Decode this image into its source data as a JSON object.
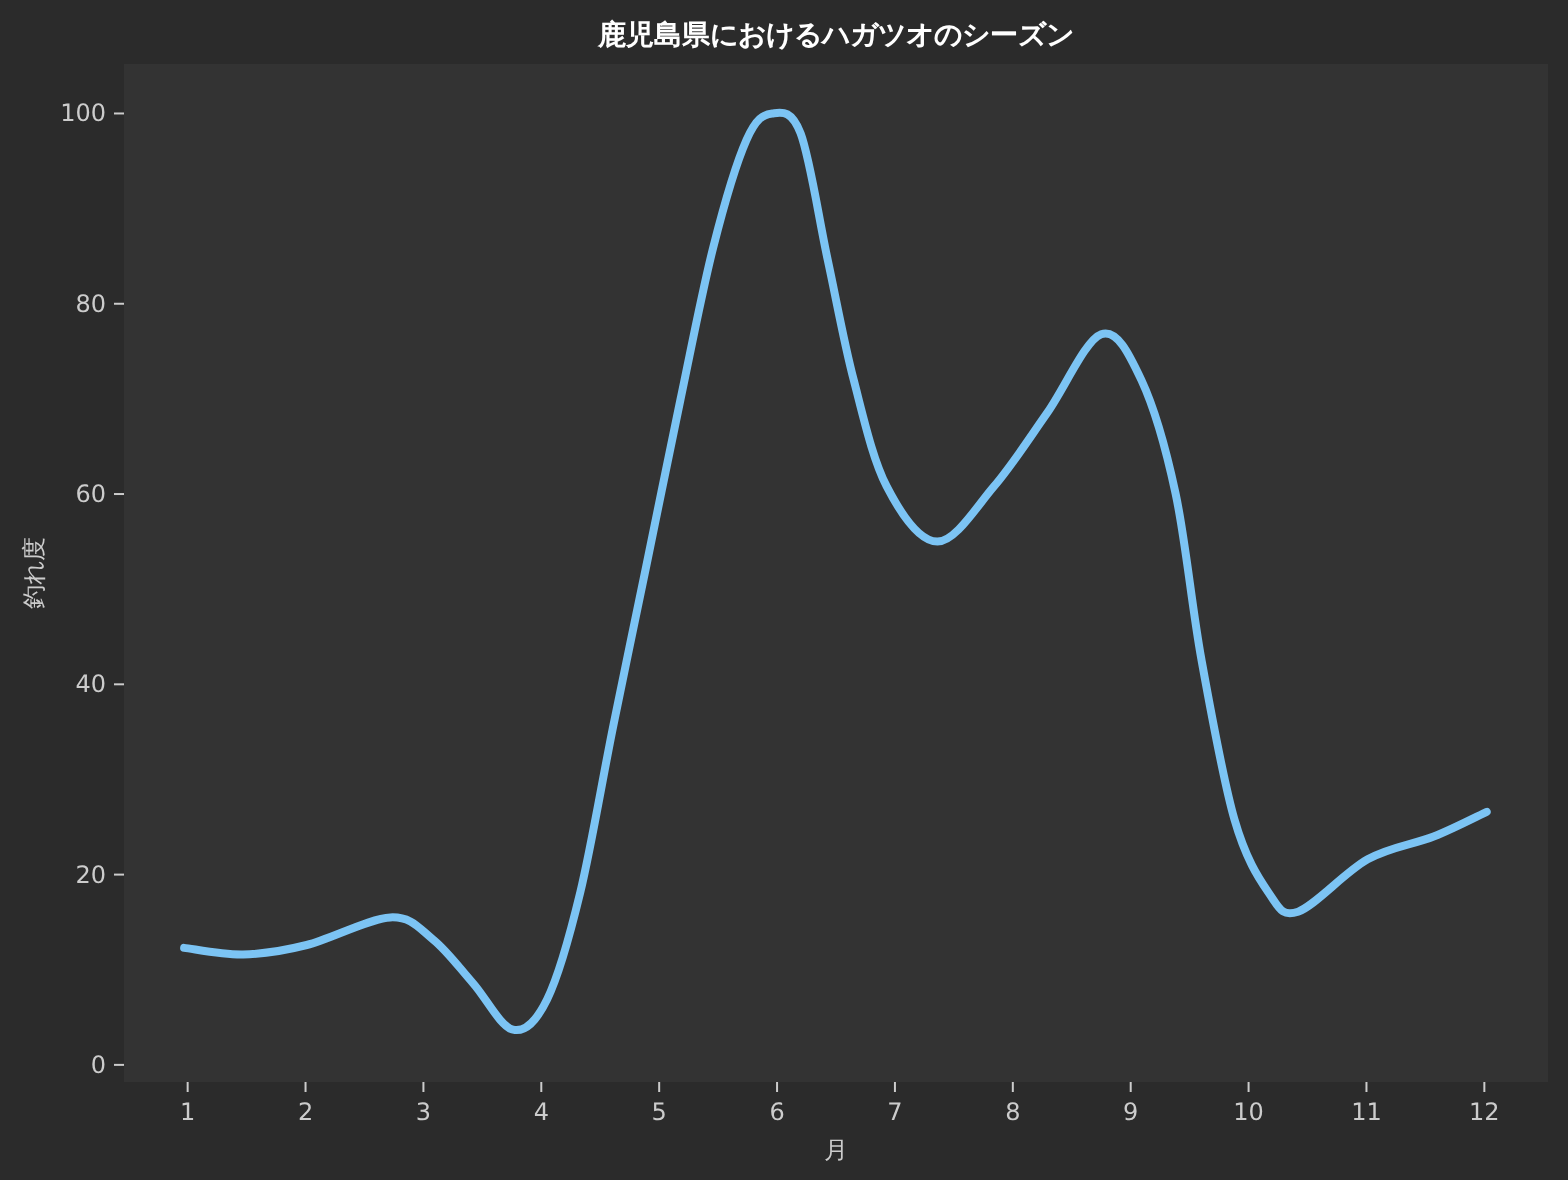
{
  "chart_data": {
    "type": "line",
    "title": "鹿児島県におけるハガツオのシーズン",
    "xlabel": "月",
    "ylabel": "釣れ度",
    "xlim": [
      0.46,
      12.54
    ],
    "ylim": [
      -1.8,
      105.2
    ],
    "xticks": [
      1,
      2,
      3,
      4,
      5,
      6,
      7,
      8,
      9,
      10,
      11,
      12
    ],
    "yticks": [
      0,
      20,
      40,
      60,
      80,
      100
    ],
    "grid": false,
    "marker": "none",
    "line_style": "solid",
    "series": [
      {
        "color": "#7cc4f4",
        "x": [
          0.97,
          1.47,
          2.01,
          2.72,
          3.08,
          3.42,
          3.76,
          4.05,
          4.33,
          4.61,
          4.89,
          5.18,
          5.46,
          5.74,
          5.96,
          6.2,
          6.43,
          6.65,
          6.93,
          7.36,
          7.84,
          8.29,
          8.75,
          9.09,
          9.38,
          9.6,
          9.88,
          10.17,
          10.42,
          11.01,
          11.57,
          12.02
        ],
        "values": [
          12.3,
          11.6,
          12.6,
          15.5,
          13.2,
          8.6,
          3.7,
          6.9,
          18.1,
          35.6,
          52.4,
          69.9,
          86,
          97.2,
          100,
          97.9,
          84.6,
          72,
          60.8,
          55,
          60.8,
          68.5,
          76.8,
          72,
          60.1,
          42.6,
          25.8,
          18.1,
          16.1,
          21.6,
          24,
          26.6
        ]
      }
    ]
  }
}
